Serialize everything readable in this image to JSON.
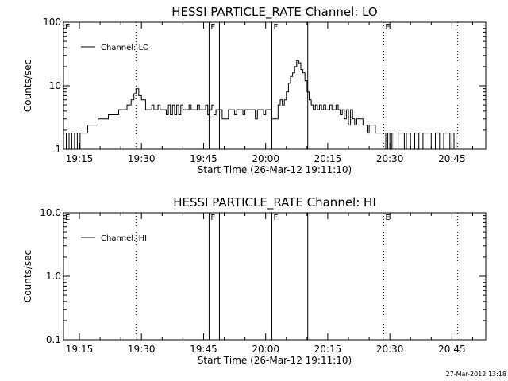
{
  "footer_timestamp": "27-Mar-2012 13:18",
  "chart_data": [
    {
      "type": "line",
      "title": "HESSI PARTICLE_RATE Channel: LO",
      "xlabel": "Start Time (26-Mar-12 19:11:10)",
      "ylabel": "Counts/sec",
      "yscale": "log",
      "ylim": [
        1,
        100
      ],
      "xlim": [
        "19:11:10",
        "20:53:10"
      ],
      "x_ticks": [
        "19:15",
        "19:30",
        "19:45",
        "20:00",
        "20:15",
        "20:30",
        "20:45"
      ],
      "y_ticks": [
        "1",
        "10",
        "100"
      ],
      "legend": {
        "label": "Channel: LO",
        "position": "top-left"
      },
      "markers": [
        {
          "label": "E",
          "time": "19:11:10",
          "style": "none"
        },
        {
          "label": "",
          "time": "19:28:40",
          "style": "dotted"
        },
        {
          "label": "F",
          "time": "19:46:20",
          "style": "solid"
        },
        {
          "label": "",
          "time": "19:48:50",
          "style": "solid"
        },
        {
          "label": "F",
          "time": "20:01:30",
          "style": "solid"
        },
        {
          "label": "",
          "time": "20:10:10",
          "style": "solid"
        },
        {
          "label": "E",
          "time": "20:28:30",
          "style": "dotted"
        },
        {
          "label": "",
          "time": "20:46:20",
          "style": "dotted"
        }
      ],
      "series": [
        {
          "name": "Channel: LO",
          "points": [
            [
              "19:11:10",
              1.8
            ],
            [
              "19:11:50",
              1
            ],
            [
              "19:12:30",
              1.8
            ],
            [
              "19:13:10",
              1
            ],
            [
              "19:13:50",
              1.8
            ],
            [
              "19:14:30",
              1
            ],
            [
              "19:15:10",
              1.8
            ],
            [
              "19:16:30",
              1.8
            ],
            [
              "19:17:00",
              2.4
            ],
            [
              "19:19:00",
              2.4
            ],
            [
              "19:19:30",
              3
            ],
            [
              "19:21:30",
              3
            ],
            [
              "19:22:00",
              3.5
            ],
            [
              "19:24:00",
              3.5
            ],
            [
              "19:24:30",
              4.2
            ],
            [
              "19:26:00",
              4.2
            ],
            [
              "19:26:30",
              5
            ],
            [
              "19:27:30",
              6
            ],
            [
              "19:28:10",
              7.5
            ],
            [
              "19:28:40",
              9
            ],
            [
              "19:29:20",
              7
            ],
            [
              "19:30:00",
              6
            ],
            [
              "19:30:30",
              6
            ],
            [
              "19:31:00",
              4.2
            ],
            [
              "19:32:00",
              4.2
            ],
            [
              "19:32:30",
              5
            ],
            [
              "19:33:00",
              4.2
            ],
            [
              "19:34:00",
              5
            ],
            [
              "19:34:30",
              4.2
            ],
            [
              "19:35:30",
              4.2
            ],
            [
              "19:36:00",
              3.5
            ],
            [
              "19:36:30",
              5
            ],
            [
              "19:37:00",
              3.5
            ],
            [
              "19:37:30",
              5
            ],
            [
              "19:38:00",
              3.5
            ],
            [
              "19:38:30",
              5
            ],
            [
              "19:39:00",
              3.5
            ],
            [
              "19:39:30",
              5
            ],
            [
              "19:40:00",
              4.2
            ],
            [
              "19:41:00",
              4.2
            ],
            [
              "19:41:30",
              5
            ],
            [
              "19:42:00",
              4.2
            ],
            [
              "19:43:00",
              4.2
            ],
            [
              "19:43:30",
              5
            ],
            [
              "19:44:00",
              4.2
            ],
            [
              "19:45:00",
              4.2
            ],
            [
              "19:45:30",
              5
            ],
            [
              "19:46:00",
              3.5
            ],
            [
              "19:46:30",
              4.2
            ],
            [
              "19:47:00",
              5
            ],
            [
              "19:47:30",
              3.5
            ],
            [
              "19:48:00",
              4.2
            ],
            [
              "19:49:00",
              4.2
            ],
            [
              "19:49:30",
              3
            ],
            [
              "19:50:30",
              3
            ],
            [
              "19:51:00",
              4.2
            ],
            [
              "19:52:00",
              4.2
            ],
            [
              "19:52:30",
              3.5
            ],
            [
              "19:53:00",
              4.2
            ],
            [
              "19:54:00",
              4.2
            ],
            [
              "19:54:30",
              3.5
            ],
            [
              "19:55:00",
              4.2
            ],
            [
              "19:56:00",
              4.2
            ],
            [
              "19:57:00",
              4.2
            ],
            [
              "19:57:30",
              3
            ],
            [
              "19:58:00",
              4.2
            ],
            [
              "19:59:00",
              4.2
            ],
            [
              "19:59:30",
              3.5
            ],
            [
              "20:00:00",
              4.2
            ],
            [
              "20:01:00",
              4.2
            ],
            [
              "20:01:30",
              3
            ],
            [
              "20:02:30",
              3
            ],
            [
              "20:03:00",
              5
            ],
            [
              "20:03:30",
              6
            ],
            [
              "20:04:00",
              5
            ],
            [
              "20:04:30",
              6
            ],
            [
              "20:05:00",
              8
            ],
            [
              "20:05:30",
              11
            ],
            [
              "20:06:00",
              14
            ],
            [
              "20:06:30",
              16
            ],
            [
              "20:07:00",
              20
            ],
            [
              "20:07:30",
              25
            ],
            [
              "20:08:00",
              23
            ],
            [
              "20:08:30",
              18
            ],
            [
              "20:09:00",
              16
            ],
            [
              "20:09:30",
              12
            ],
            [
              "20:10:00",
              8
            ],
            [
              "20:10:30",
              6
            ],
            [
              "20:11:00",
              5
            ],
            [
              "20:11:30",
              4.2
            ],
            [
              "20:12:00",
              5
            ],
            [
              "20:12:30",
              4.2
            ],
            [
              "20:13:00",
              5
            ],
            [
              "20:13:30",
              4.2
            ],
            [
              "20:14:00",
              5
            ],
            [
              "20:14:30",
              4.2
            ],
            [
              "20:15:00",
              4.2
            ],
            [
              "20:15:30",
              5
            ],
            [
              "20:16:00",
              4.2
            ],
            [
              "20:16:30",
              4.2
            ],
            [
              "20:17:00",
              5
            ],
            [
              "20:17:30",
              4.2
            ],
            [
              "20:18:00",
              3.5
            ],
            [
              "20:18:30",
              4.2
            ],
            [
              "20:19:00",
              3
            ],
            [
              "20:19:30",
              4.2
            ],
            [
              "20:20:00",
              2.4
            ],
            [
              "20:20:30",
              4.2
            ],
            [
              "20:21:00",
              3
            ],
            [
              "20:21:30",
              2.4
            ],
            [
              "20:22:00",
              3
            ],
            [
              "20:23:00",
              3
            ],
            [
              "20:23:30",
              2.4
            ],
            [
              "20:24:00",
              2.4
            ],
            [
              "20:24:30",
              1.8
            ],
            [
              "20:25:00",
              2.4
            ],
            [
              "20:26:00",
              2.4
            ],
            [
              "20:26:30",
              1.8
            ],
            [
              "20:27:00",
              1.8
            ],
            [
              "20:28:30",
              1.8
            ],
            [
              "20:29:00",
              1
            ],
            [
              "20:29:30",
              1.8
            ],
            [
              "20:30:00",
              1
            ],
            [
              "20:30:30",
              1.8
            ],
            [
              "20:31:00",
              1
            ],
            [
              "20:32:00",
              1.8
            ],
            [
              "20:33:00",
              1.8
            ],
            [
              "20:33:30",
              1
            ],
            [
              "20:34:00",
              1.8
            ],
            [
              "20:35:00",
              1
            ],
            [
              "20:36:00",
              1.8
            ],
            [
              "20:37:00",
              1
            ],
            [
              "20:38:00",
              1.8
            ],
            [
              "20:39:00",
              1.8
            ],
            [
              "20:40:00",
              1
            ],
            [
              "20:41:00",
              1.8
            ],
            [
              "20:42:00",
              1
            ],
            [
              "20:43:00",
              1.8
            ],
            [
              "20:44:00",
              1.8
            ],
            [
              "20:44:30",
              1
            ],
            [
              "20:45:00",
              1.8
            ],
            [
              "20:45:30",
              1
            ],
            [
              "20:46:00",
              1.8
            ]
          ]
        }
      ]
    },
    {
      "type": "line",
      "title": "HESSI PARTICLE_RATE Channel: HI",
      "xlabel": "Start Time (26-Mar-12 19:11:10)",
      "ylabel": "Counts/sec",
      "yscale": "log",
      "ylim": [
        0.1,
        10
      ],
      "xlim": [
        "19:11:10",
        "20:53:10"
      ],
      "x_ticks": [
        "19:15",
        "19:30",
        "19:45",
        "20:00",
        "20:15",
        "20:30",
        "20:45"
      ],
      "y_ticks": [
        "0.1",
        "1.0",
        "10.0"
      ],
      "legend": {
        "label": "Channel: HI",
        "position": "top-left"
      },
      "markers": [
        {
          "label": "E",
          "time": "19:11:10",
          "style": "none"
        },
        {
          "label": "",
          "time": "19:28:40",
          "style": "dotted"
        },
        {
          "label": "F",
          "time": "19:46:20",
          "style": "solid"
        },
        {
          "label": "",
          "time": "19:48:50",
          "style": "solid"
        },
        {
          "label": "F",
          "time": "20:01:30",
          "style": "solid"
        },
        {
          "label": "",
          "time": "20:10:10",
          "style": "solid"
        },
        {
          "label": "E",
          "time": "20:28:30",
          "style": "dotted"
        },
        {
          "label": "",
          "time": "20:46:20",
          "style": "dotted"
        }
      ],
      "series": [
        {
          "name": "Channel: HI",
          "points": []
        }
      ]
    }
  ]
}
